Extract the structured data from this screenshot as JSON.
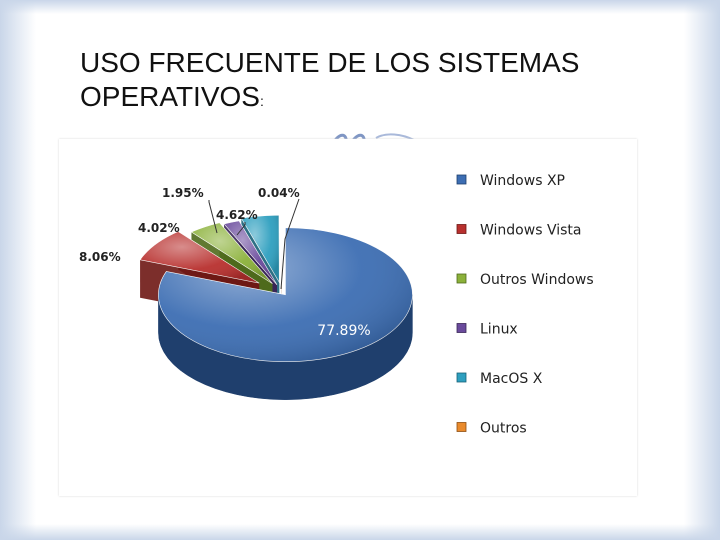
{
  "slide": {
    "title_line1": "USO FRECUENTE DE LOS SISTEMAS",
    "title_line2": "OPERATIVOS",
    "title_colon": ":"
  },
  "chart_data": {
    "type": "pie",
    "style": "3d-exploded",
    "title": "",
    "legend_position": "right",
    "categories": [
      "Windows XP",
      "Windows Vista",
      "Outros Windows",
      "Linux",
      "MacOS X",
      "Outros"
    ],
    "values": [
      77.89,
      8.06,
      4.02,
      1.95,
      4.62,
      0.04
    ],
    "labels": [
      "77.89%",
      "8.06%",
      "4.02%",
      "1.95%",
      "4.62%",
      "0.04%"
    ],
    "colors": [
      "#3d6eb3",
      "#b8302e",
      "#8bb13a",
      "#6a4a9c",
      "#2e9fbf",
      "#e98a2c"
    ],
    "side_colors": [
      "#1f3f6d",
      "#6e1714",
      "#4f6a1c",
      "#3a2658",
      "#176178",
      "#8e4e12"
    ]
  }
}
